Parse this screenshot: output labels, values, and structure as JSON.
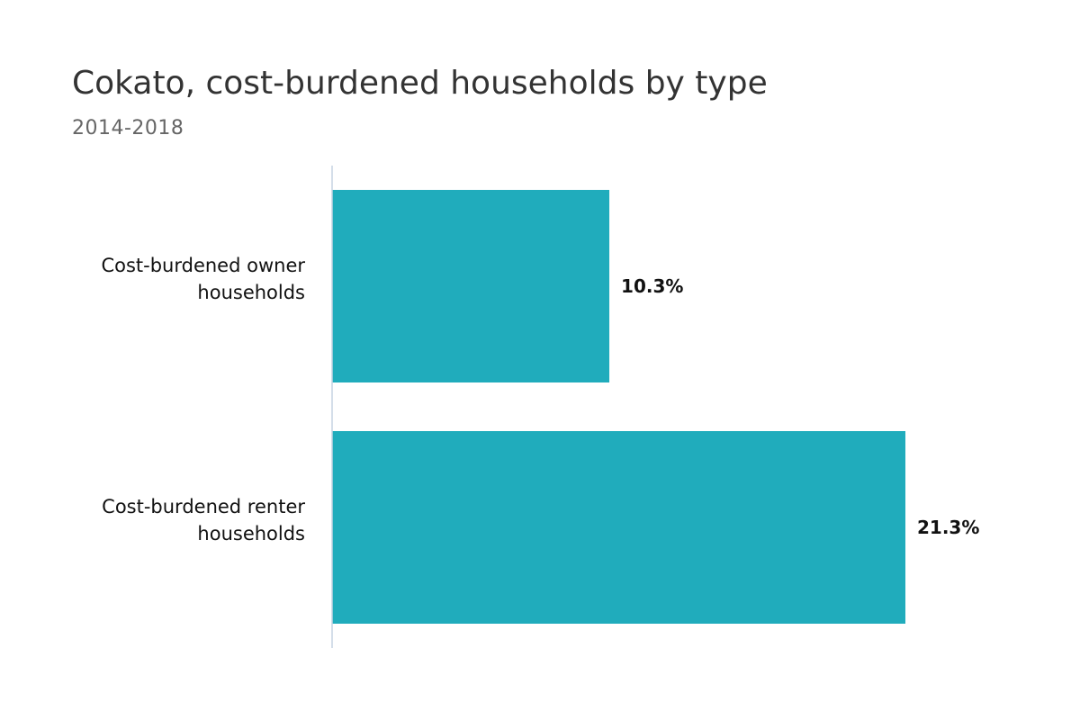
{
  "chart_data": {
    "type": "bar",
    "orientation": "horizontal",
    "title": "Cokato, cost-burdened households by type",
    "subtitle": "2014-2018",
    "categories": [
      [
        "Cost-burdened owner",
        "households"
      ],
      [
        "Cost-burdened renter",
        "households"
      ]
    ],
    "values": [
      10.3,
      21.3
    ],
    "value_labels": [
      "10.3%",
      "21.3%"
    ],
    "xlim": [
      0,
      22
    ],
    "grid": false,
    "legend": "none",
    "bar_color": "#20acbc",
    "axis_color": "#c5d3e2"
  }
}
